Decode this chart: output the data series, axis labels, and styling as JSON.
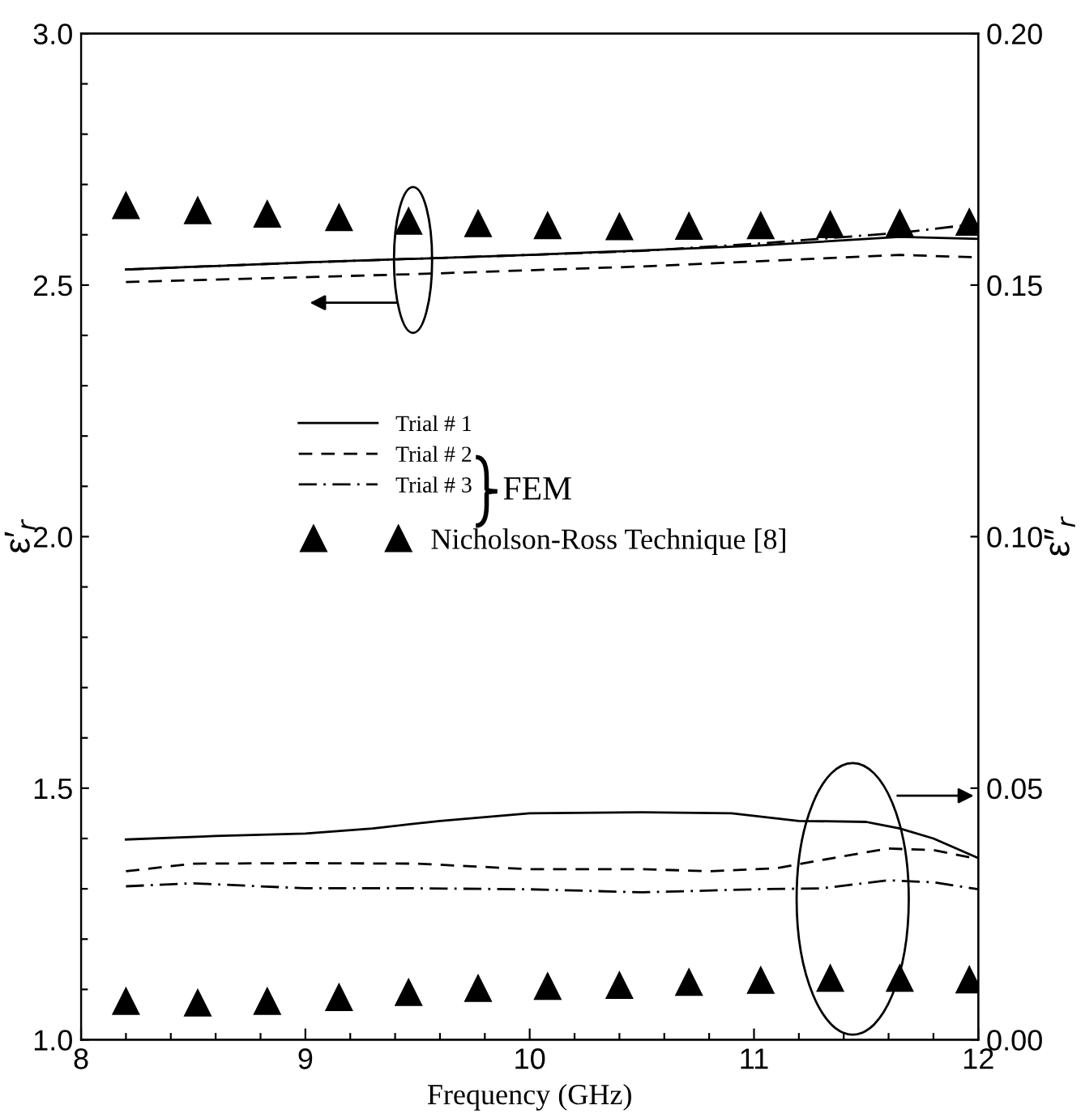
{
  "chart_data": {
    "type": "line",
    "xlabel": "Frequency (GHz)",
    "ylabel": "ε′$_{r}$",
    "y2label": "ε″$_{r}$",
    "xlim": [
      8,
      12
    ],
    "ylim": [
      1.0,
      3.0
    ],
    "y2lim": [
      0.0,
      0.2
    ],
    "xticks": [
      8,
      {
        "value": 8.2,
        "label": null
      },
      {
        "value": 8.4,
        "label": null
      },
      {
        "value": 8.6,
        "label": null
      },
      {
        "value": 8.8,
        "label": null
      },
      9,
      {
        "value": 9.2,
        "label": null
      },
      {
        "value": 9.4,
        "label": null
      },
      {
        "value": 9.6,
        "label": null
      },
      {
        "value": 9.8,
        "label": null
      },
      10,
      {
        "value": 10.2,
        "label": null
      },
      {
        "value": 10.4,
        "label": null
      },
      {
        "value": 10.6,
        "label": null
      },
      {
        "value": 10.8,
        "label": null
      },
      11,
      {
        "value": 11.2,
        "label": null
      },
      {
        "value": 11.4,
        "label": null
      },
      {
        "value": 11.6,
        "label": null
      },
      {
        "value": 11.8,
        "label": null
      },
      12
    ],
    "yticks": [
      {
        "value": 1.0,
        "label": "1.0"
      },
      {
        "value": 1.1,
        "label": null
      },
      {
        "value": 1.2,
        "label": null
      },
      {
        "value": 1.3,
        "label": null
      },
      {
        "value": 1.4,
        "label": null
      },
      1.5,
      {
        "value": 1.6,
        "label": null
      },
      {
        "value": 1.7,
        "label": null
      },
      {
        "value": 1.8,
        "label": null
      },
      {
        "value": 1.9,
        "label": null
      },
      {
        "value": 2.0,
        "label": "2.0"
      },
      {
        "value": 2.1,
        "label": null
      },
      {
        "value": 2.2,
        "label": null
      },
      {
        "value": 2.3,
        "label": null
      },
      {
        "value": 2.4,
        "label": null
      },
      2.5,
      {
        "value": 2.6,
        "label": null
      },
      {
        "value": 2.7,
        "label": null
      },
      {
        "value": 2.8,
        "label": null
      },
      {
        "value": 2.9,
        "label": null
      },
      {
        "value": 3.0,
        "label": "3.0"
      }
    ],
    "y2ticks": [
      {
        "value": 0.0,
        "label": "0.00"
      },
      {
        "value": 0.05,
        "label": "0.05"
      },
      {
        "value": 0.1,
        "label": "0.10"
      },
      {
        "value": 0.15,
        "label": "0.15"
      },
      {
        "value": 0.2,
        "label": "0.20"
      }
    ],
    "grid": false,
    "legend": "center left",
    "annotations": [
      "FEM"
    ],
    "series": [
      {
        "name": "Trial # 1",
        "color": "#000000",
        "line_style": "solid",
        "marker": "none",
        "x": [
          8.2,
          9.0,
          10.0,
          11.0,
          11.65,
          12.0
        ],
        "values": [
          2.531,
          2.545,
          2.56,
          2.578,
          2.596,
          2.592
        ]
      },
      {
        "name": "Trial # 2",
        "color": "#000000",
        "line_style": "dashed",
        "marker": "none",
        "x": [
          8.2,
          9.5,
          10.5,
          11.65,
          12.0
        ],
        "values": [
          2.506,
          2.522,
          2.537,
          2.56,
          2.555
        ]
      },
      {
        "name": "Trial # 3",
        "color": "#000000",
        "line_style": "dotted",
        "marker": "none",
        "x": [
          8.2,
          9.0,
          10.0,
          10.5,
          11.0,
          11.65,
          12.0
        ],
        "values": [
          2.531,
          2.545,
          2.56,
          2.568,
          2.582,
          2.604,
          2.622
        ]
      },
      {
        "name": "Nicholson-Ross Technique [8]",
        "type": "scatter",
        "color": "#000000",
        "marker": "triangle",
        "x": [
          8.2,
          8.52,
          8.83,
          9.15,
          9.46,
          9.77,
          10.08,
          10.4,
          10.71,
          11.03,
          11.34,
          11.65,
          11.96
        ],
        "values": [
          2.658,
          2.648,
          2.641,
          2.634,
          2.627,
          2.622,
          2.618,
          2.616,
          2.617,
          2.618,
          2.62,
          2.623,
          2.625
        ]
      },
      {
        "axis": "y2",
        "color": "#000000",
        "line_style": "solid",
        "marker": "none",
        "x": [
          8.2,
          8.6,
          9.0,
          9.3,
          9.6,
          10.0,
          10.5,
          10.9,
          11.2,
          11.5,
          11.65,
          11.8,
          12.0
        ],
        "values": [
          0.0398,
          0.0405,
          0.041,
          0.042,
          0.0435,
          0.045,
          0.0452,
          0.045,
          0.0435,
          0.0433,
          0.042,
          0.04,
          0.0361
        ]
      },
      {
        "axis": "y2",
        "color": "#000000",
        "line_style": "dashed",
        "marker": "none",
        "x": [
          8.2,
          8.5,
          9.0,
          9.5,
          10.0,
          10.5,
          10.8,
          11.1,
          11.4,
          11.6,
          11.8,
          12.0
        ],
        "values": [
          0.0335,
          0.035,
          0.0351,
          0.035,
          0.0339,
          0.0339,
          0.0335,
          0.0341,
          0.0365,
          0.038,
          0.0377,
          0.0359
        ]
      },
      {
        "axis": "y2",
        "color": "#000000",
        "line_style": "dotted",
        "marker": "none",
        "x": [
          8.2,
          8.5,
          9.0,
          9.5,
          10.0,
          10.5,
          11.0,
          11.3,
          11.6,
          11.8,
          12.0
        ],
        "values": [
          0.0305,
          0.0311,
          0.0301,
          0.0301,
          0.0299,
          0.0293,
          0.0299,
          0.0301,
          0.0317,
          0.0313,
          0.0299
        ]
      },
      {
        "axis": "y2",
        "type": "scatter",
        "color": "#000000",
        "marker": "triangle",
        "x": [
          8.2,
          8.52,
          8.83,
          9.15,
          9.46,
          9.77,
          10.08,
          10.4,
          10.71,
          11.03,
          11.34,
          11.65,
          11.96
        ],
        "values": [
          0.0076,
          0.0073,
          0.0076,
          0.0084,
          0.0094,
          0.0102,
          0.0106,
          0.0108,
          0.0114,
          0.0118,
          0.0122,
          0.0122,
          0.0119
        ]
      }
    ]
  }
}
